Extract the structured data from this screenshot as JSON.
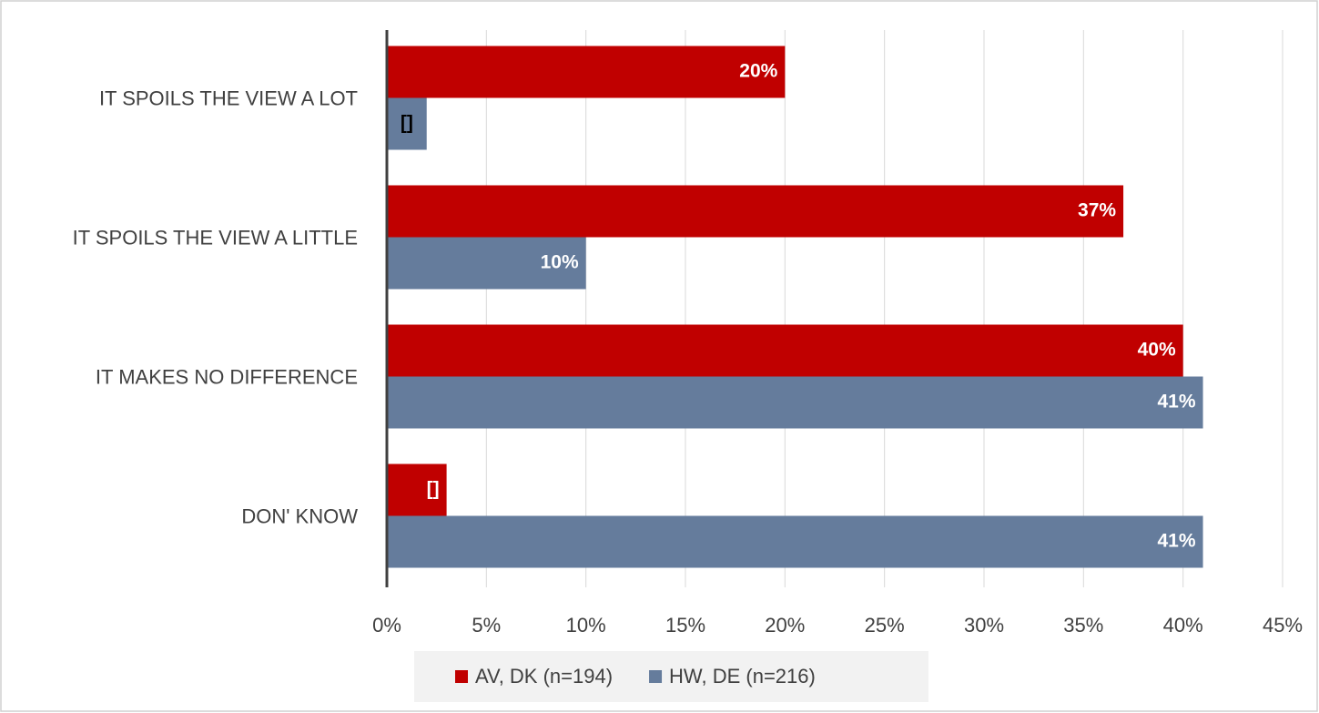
{
  "chart_data": {
    "type": "hbar",
    "categories": [
      "IT SPOILS THE VIEW A LOT",
      "IT SPOILS THE VIEW A LITTLE",
      "IT MAKES NO DIFFERENCE",
      "DON' KNOW"
    ],
    "series": [
      {
        "name": "AV, DK (n=194)",
        "color": "#c00000",
        "values": [
          20,
          37,
          40,
          3
        ],
        "value_labels": [
          "20%",
          "37%",
          "40%",
          "[]"
        ]
      },
      {
        "name": "HW, DE (n=216)",
        "color": "#657c9c",
        "values": [
          2,
          10,
          41,
          41
        ],
        "value_labels": [
          "[]",
          "10%",
          "41%",
          "41%"
        ]
      }
    ],
    "xlim": [
      0,
      45
    ],
    "xticks": [
      {
        "value": 0,
        "label": "0%"
      },
      {
        "value": 5,
        "label": "5%"
      },
      {
        "value": 10,
        "label": "10%"
      },
      {
        "value": 15,
        "label": "15%"
      },
      {
        "value": 20,
        "label": "20%"
      },
      {
        "value": 25,
        "label": "25%"
      },
      {
        "value": 30,
        "label": "30%"
      },
      {
        "value": 35,
        "label": "35%"
      },
      {
        "value": 40,
        "label": "40%"
      },
      {
        "value": 45,
        "label": "45%"
      }
    ],
    "grid": true,
    "legend": "bottom"
  }
}
